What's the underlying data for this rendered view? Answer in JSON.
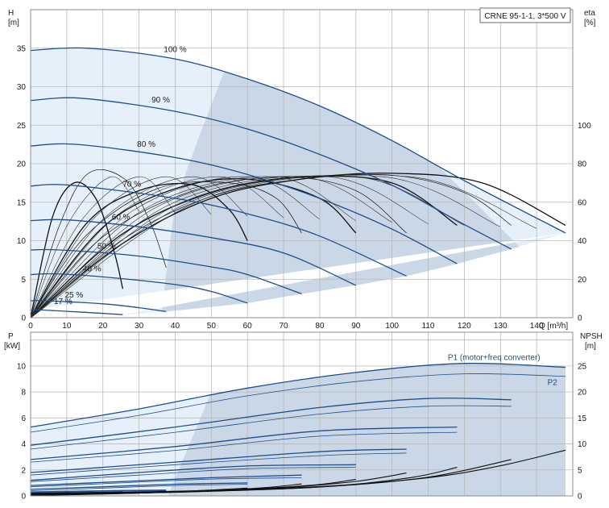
{
  "product": "CRNE 95-1-1, 3*500 V",
  "colors": {
    "pump_curve": "#1f4e8c",
    "eta_curve": "#111111",
    "region_fill": "#c9d7e6",
    "region_fill_light": "#e6f0fa"
  },
  "chart_data": [
    {
      "type": "line",
      "panel": "head",
      "xlabel": "Q [m³/h]",
      "ylabel": "H\n[m]",
      "y2label": "eta\n[%]",
      "xlim": [
        0,
        150
      ],
      "ylim": [
        0,
        40
      ],
      "y2lim": [
        0,
        160
      ],
      "x_ticks": [
        "0",
        "10",
        "20",
        "30",
        "40",
        "50",
        "60",
        "70",
        "80",
        "90",
        "100",
        "110",
        "120",
        "130",
        "140"
      ],
      "y_ticks": [
        "0",
        "5",
        "10",
        "15",
        "20",
        "25",
        "30",
        "35"
      ],
      "y2_ticks": [
        "0",
        "20",
        "40",
        "60",
        "80",
        "100"
      ],
      "grid": true,
      "series": [
        {
          "name": "100 %",
          "speed": 1.0,
          "x": [
            0,
            16,
            40,
            60,
            80,
            100,
            120,
            148
          ],
          "y": [
            34.7,
            35.0,
            33.6,
            31.0,
            27.5,
            23.0,
            17.8,
            11.0
          ]
        },
        {
          "name": "90 %",
          "speed": 0.9,
          "x": [
            0,
            14,
            40,
            60,
            80,
            100,
            118,
            133
          ],
          "y": [
            28.2,
            28.5,
            26.8,
            24.5,
            21.2,
            17.2,
            12.6,
            8.9
          ]
        },
        {
          "name": "80 %",
          "speed": 0.8,
          "x": [
            0,
            13,
            40,
            60,
            80,
            100,
            118
          ],
          "y": [
            22.3,
            22.5,
            20.8,
            18.6,
            15.5,
            11.5,
            7.0
          ]
        },
        {
          "name": "70 %",
          "speed": 0.7,
          "x": [
            0,
            11,
            40,
            60,
            80,
            104
          ],
          "y": [
            17.1,
            17.2,
            15.5,
            13.5,
            10.6,
            5.4
          ]
        },
        {
          "name": "60 %",
          "speed": 0.6,
          "x": [
            0,
            10,
            30,
            50,
            70,
            90
          ],
          "y": [
            12.6,
            12.7,
            11.8,
            10.4,
            8.4,
            4.2
          ]
        },
        {
          "name": "50 %",
          "speed": 0.5,
          "x": [
            0,
            8,
            30,
            50,
            60,
            75
          ],
          "y": [
            8.8,
            8.8,
            8.0,
            6.6,
            5.6,
            3.1
          ]
        },
        {
          "name": "40 %",
          "speed": 0.4,
          "x": [
            0,
            7,
            20,
            40,
            50,
            60
          ],
          "y": [
            5.6,
            5.7,
            5.3,
            4.3,
            3.4,
            1.9
          ]
        },
        {
          "name": "25 %",
          "speed": 0.25,
          "x": [
            0,
            4,
            20,
            30,
            37.5
          ],
          "y": [
            2.2,
            2.2,
            1.8,
            1.3,
            0.8
          ]
        },
        {
          "name": "17 %",
          "speed": 0.17,
          "x": [
            0,
            3,
            15,
            25.5
          ],
          "y": [
            1.0,
            1.0,
            0.7,
            0.4
          ]
        }
      ],
      "eta_series": [
        {
          "speed": 1.0,
          "x": [
            0,
            25,
            50,
            75,
            100,
            125,
            148
          ],
          "eta": [
            0,
            38,
            62,
            72,
            75,
            70,
            48
          ]
        },
        {
          "speed": 0.9,
          "x": [
            0,
            25,
            50,
            75,
            100,
            120,
            133
          ],
          "eta": [
            0,
            40,
            63,
            72,
            74,
            65,
            48
          ]
        },
        {
          "speed": 0.8,
          "x": [
            0,
            25,
            50,
            75,
            100,
            118
          ],
          "eta": [
            0,
            43,
            65,
            73,
            70,
            48
          ]
        },
        {
          "speed": 0.7,
          "x": [
            0,
            20,
            45,
            70,
            90,
            104
          ],
          "eta": [
            0,
            42,
            66,
            73,
            66,
            44
          ]
        },
        {
          "speed": 0.6,
          "x": [
            0,
            20,
            40,
            60,
            80,
            90
          ],
          "eta": [
            0,
            47,
            67,
            72,
            62,
            44
          ]
        },
        {
          "speed": 0.5,
          "x": [
            0,
            15,
            35,
            55,
            68,
            75
          ],
          "eta": [
            0,
            42,
            67,
            70,
            62,
            44
          ]
        },
        {
          "speed": 0.4,
          "x": [
            0,
            15,
            30,
            45,
            55,
            60
          ],
          "eta": [
            0,
            48,
            66,
            69,
            56,
            40
          ]
        },
        {
          "speed": 0.25,
          "x": [
            0,
            8,
            16,
            26,
            33,
            37.5
          ],
          "eta": [
            0,
            48,
            75,
            72,
            50,
            26
          ]
        },
        {
          "speed": 0.17,
          "x": [
            0,
            6,
            12,
            18,
            23,
            25.5
          ],
          "eta": [
            0,
            52,
            70,
            62,
            35,
            15
          ]
        }
      ]
    },
    {
      "type": "line",
      "panel": "power",
      "xlabel": "",
      "ylabel": "P\n[kW]",
      "y2label": "NPSH\n[m]",
      "xlim": [
        0,
        150
      ],
      "ylim": [
        0,
        12.6
      ],
      "y2lim": [
        0,
        31.5
      ],
      "y_ticks": [
        "0",
        "2",
        "4",
        "6",
        "8",
        "10"
      ],
      "y2_ticks": [
        "0",
        "5",
        "10",
        "15",
        "20",
        "25"
      ],
      "grid": true,
      "series_labels": [
        "P1 (motor+freq converter)",
        "P2"
      ],
      "p1_series": [
        {
          "speed": 1.0,
          "x": [
            0,
            30,
            60,
            90,
            120,
            148
          ],
          "y": [
            5.3,
            6.7,
            8.3,
            9.5,
            10.2,
            9.9
          ]
        },
        {
          "speed": 0.9,
          "x": [
            0,
            40,
            80,
            110,
            133
          ],
          "y": [
            3.9,
            5.3,
            6.8,
            7.5,
            7.4
          ]
        },
        {
          "speed": 0.8,
          "x": [
            0,
            40,
            80,
            118
          ],
          "y": [
            2.8,
            3.8,
            5.0,
            5.3
          ]
        },
        {
          "speed": 0.7,
          "x": [
            0,
            40,
            80,
            104
          ],
          "y": [
            1.8,
            2.6,
            3.4,
            3.6
          ]
        },
        {
          "speed": 0.6,
          "x": [
            0,
            30,
            60,
            90
          ],
          "y": [
            1.2,
            1.8,
            2.3,
            2.4
          ]
        },
        {
          "speed": 0.5,
          "x": [
            0,
            25,
            50,
            75
          ],
          "y": [
            0.8,
            1.1,
            1.4,
            1.6
          ]
        },
        {
          "speed": 0.4,
          "x": [
            0,
            20,
            40,
            60
          ],
          "y": [
            0.5,
            0.7,
            0.9,
            1.0
          ]
        },
        {
          "speed": 0.25,
          "x": [
            0,
            20,
            37.5
          ],
          "y": [
            0.3,
            0.4,
            0.45
          ]
        },
        {
          "speed": 0.17,
          "x": [
            0,
            12,
            25.5
          ],
          "y": [
            0.2,
            0.25,
            0.3
          ]
        }
      ],
      "p2_series": [
        {
          "speed": 1.0,
          "x": [
            0,
            30,
            60,
            90,
            120,
            148
          ],
          "y": [
            4.9,
            6.2,
            7.7,
            8.8,
            9.4,
            9.2
          ]
        },
        {
          "speed": 0.9,
          "x": [
            0,
            40,
            80,
            110,
            133
          ],
          "y": [
            3.6,
            4.9,
            6.3,
            6.9,
            6.9
          ]
        },
        {
          "speed": 0.8,
          "x": [
            0,
            40,
            80,
            118
          ],
          "y": [
            2.6,
            3.5,
            4.6,
            4.9
          ]
        },
        {
          "speed": 0.7,
          "x": [
            0,
            40,
            80,
            104
          ],
          "y": [
            1.6,
            2.4,
            3.1,
            3.3
          ]
        },
        {
          "speed": 0.6,
          "x": [
            0,
            30,
            60,
            90
          ],
          "y": [
            1.1,
            1.6,
            2.1,
            2.2
          ]
        },
        {
          "speed": 0.5,
          "x": [
            0,
            25,
            50,
            75
          ],
          "y": [
            0.7,
            1.0,
            1.3,
            1.4
          ]
        },
        {
          "speed": 0.4,
          "x": [
            0,
            20,
            40,
            60
          ],
          "y": [
            0.4,
            0.6,
            0.8,
            0.9
          ]
        },
        {
          "speed": 0.25,
          "x": [
            0,
            20,
            37.5
          ],
          "y": [
            0.25,
            0.35,
            0.4
          ]
        },
        {
          "speed": 0.17,
          "x": [
            0,
            12,
            25.5
          ],
          "y": [
            0.15,
            0.2,
            0.25
          ]
        }
      ],
      "npsh_series": [
        {
          "speed": 1.0,
          "x": [
            0,
            40,
            80,
            110,
            130,
            148
          ],
          "y": [
            0.5,
            0.9,
            1.8,
            3.5,
            5.8,
            8.8
          ]
        },
        {
          "speed": 0.9,
          "x": [
            0,
            40,
            80,
            110,
            133
          ],
          "y": [
            0.4,
            0.8,
            1.7,
            3.6,
            7.0
          ]
        },
        {
          "speed": 0.8,
          "x": [
            0,
            40,
            80,
            105,
            118
          ],
          "y": [
            0.3,
            0.7,
            1.7,
            3.5,
            5.5
          ]
        },
        {
          "speed": 0.7,
          "x": [
            0,
            40,
            70,
            90,
            104
          ],
          "y": [
            0.25,
            0.7,
            1.6,
            2.8,
            4.4
          ]
        },
        {
          "speed": 0.6,
          "x": [
            0,
            30,
            60,
            80,
            90
          ],
          "y": [
            0.2,
            0.55,
            1.3,
            2.2,
            3.2
          ]
        },
        {
          "speed": 0.5,
          "x": [
            0,
            25,
            50,
            65,
            75
          ],
          "y": [
            0.15,
            0.45,
            1.0,
            1.6,
            2.3
          ]
        },
        {
          "speed": 0.4,
          "x": [
            0,
            20,
            40,
            60
          ],
          "y": [
            0.1,
            0.35,
            0.8,
            1.5
          ]
        }
      ]
    }
  ]
}
